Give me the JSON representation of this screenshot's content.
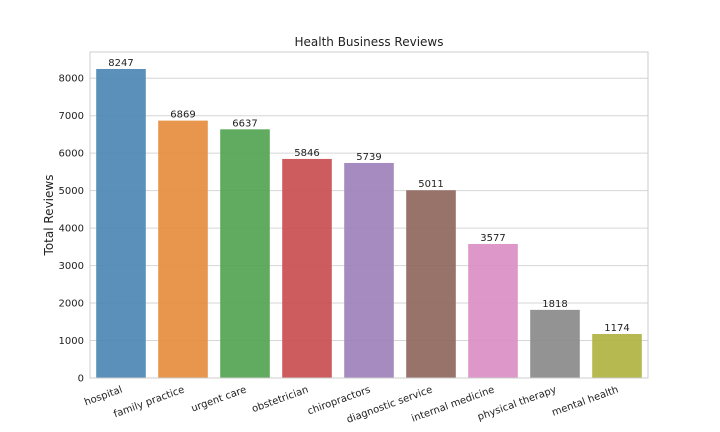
{
  "chart_data": {
    "type": "bar",
    "title": "Health Business Reviews",
    "xlabel": "",
    "ylabel": "Total Reviews",
    "categories": [
      "hospital",
      "family practice",
      "urgent care",
      "obstetrician",
      "chiropractors",
      "diagnostic service",
      "internal medicine",
      "physical therapy",
      "mental health"
    ],
    "values": [
      8247,
      6869,
      6637,
      5846,
      5739,
      5011,
      3577,
      1818,
      1174
    ],
    "data_labels": [
      "8247",
      "6869",
      "6637",
      "5846",
      "5739",
      "5011",
      "3577",
      "1818",
      "1174"
    ],
    "colors": [
      "#4c87b4",
      "#e68d3f",
      "#53a453",
      "#c94e50",
      "#9e81bb",
      "#8e675d",
      "#da8ec4",
      "#8a8a8a",
      "#b0b241"
    ],
    "ylim": [
      0,
      8700
    ],
    "yticks": [
      0,
      1000,
      2000,
      3000,
      4000,
      5000,
      6000,
      7000,
      8000
    ],
    "ytick_labels": [
      "0",
      "1000",
      "2000",
      "3000",
      "4000",
      "5000",
      "6000",
      "7000",
      "8000"
    ],
    "grid": "y",
    "xtick_rotation": "slanted"
  }
}
